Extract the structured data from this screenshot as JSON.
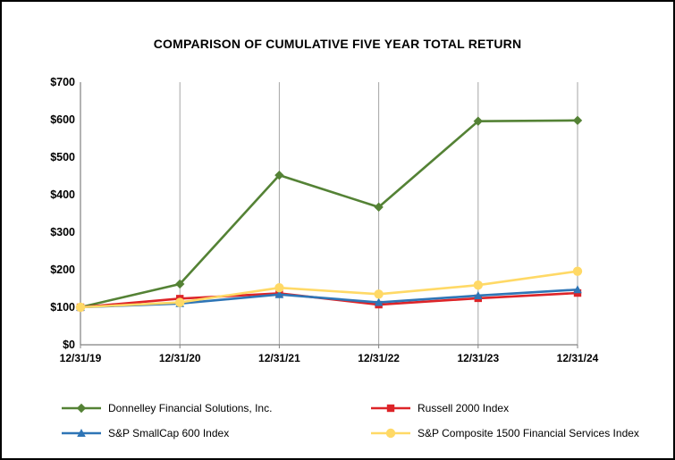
{
  "chart_data": {
    "type": "line",
    "title": "COMPARISON OF CUMULATIVE FIVE YEAR TOTAL RETURN",
    "categories": [
      "12/31/19",
      "12/31/20",
      "12/31/21",
      "12/31/22",
      "12/31/23",
      "12/31/24"
    ],
    "series": [
      {
        "name": "Donnelley Financial Solutions, Inc.",
        "color": "#548235",
        "marker": "diamond",
        "values": [
          100,
          162,
          452,
          367,
          596,
          598
        ]
      },
      {
        "name": "Russell 2000 Index",
        "color": "#dd2428",
        "marker": "square",
        "values": [
          100,
          123,
          137,
          107,
          124,
          138
        ]
      },
      {
        "name": "S&P SmallCap 600 Index",
        "color": "#2e75b6",
        "marker": "triangle",
        "values": [
          100,
          110,
          134,
          113,
          131,
          147
        ]
      },
      {
        "name": "S&P Composite 1500 Financial Services Index",
        "color": "#ffd966",
        "marker": "circle",
        "values": [
          100,
          113,
          152,
          135,
          159,
          196
        ]
      }
    ],
    "ylim": [
      0,
      700
    ],
    "yticks": [
      0,
      100,
      200,
      300,
      400,
      500,
      600,
      700
    ],
    "ytick_labels": [
      "$0",
      "$100",
      "$200",
      "$300",
      "$400",
      "$500",
      "$600",
      "$700"
    ],
    "xlabel": "",
    "ylabel": "",
    "grid": "vertical-only",
    "grid_color": "#a6a6a6",
    "axis_color": "#808080",
    "legend_position": "bottom-two-columns"
  }
}
